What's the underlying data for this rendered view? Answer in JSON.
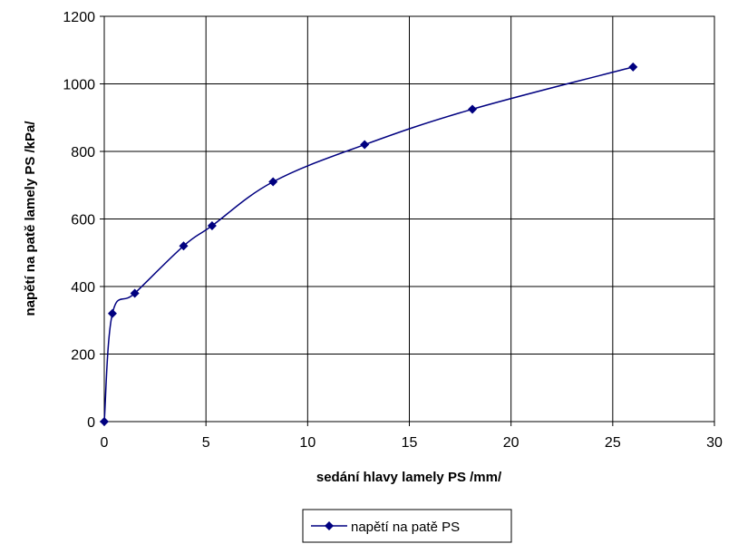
{
  "chart_data": {
    "type": "line",
    "title": "",
    "xlabel": "sedání hlavy lamely PS /mm/",
    "ylabel": "napětí na patě lamely PS /kPa/",
    "xlim": [
      0,
      30
    ],
    "ylim": [
      0,
      1200
    ],
    "x_ticks": [
      0,
      5,
      10,
      15,
      20,
      25,
      30
    ],
    "y_ticks": [
      0,
      200,
      400,
      600,
      800,
      1000,
      1200
    ],
    "grid": true,
    "legend_position": "bottom-center",
    "smoothed": true,
    "series": [
      {
        "name": "napětí na patě PS",
        "color": "#000080",
        "marker": "diamond",
        "x": [
          0,
          0.4,
          1.5,
          3.9,
          5.3,
          8.3,
          12.8,
          18.1,
          26.0
        ],
        "y": [
          0,
          320,
          380,
          520,
          580,
          710,
          820,
          925,
          1050
        ]
      }
    ]
  }
}
